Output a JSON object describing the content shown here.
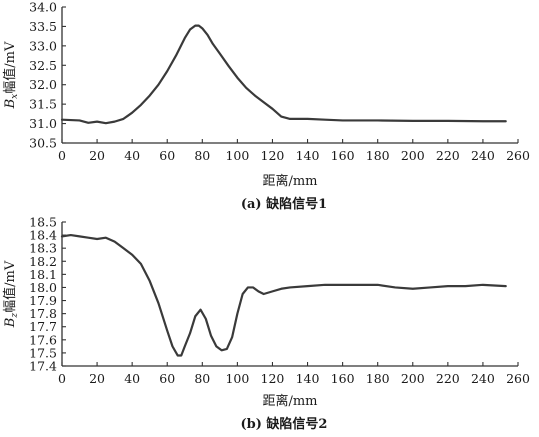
{
  "chart_data": [
    {
      "type": "line",
      "caption": "(a)  缺陷信号1",
      "xlabel": "距离/mm",
      "ylabel_main": "B",
      "ylabel_sub": "x",
      "ylabel_rest": "幅值/mV",
      "xlim": [
        0,
        260
      ],
      "ylim": [
        30.5,
        34.0
      ],
      "xticks": [
        0,
        20,
        40,
        60,
        80,
        100,
        120,
        140,
        160,
        180,
        200,
        220,
        240,
        260
      ],
      "yticks": [
        30.5,
        31.0,
        31.5,
        32.0,
        32.5,
        33.0,
        33.5,
        34.0
      ],
      "series": [
        {
          "x": [
            0,
            10,
            15,
            20,
            25,
            30,
            35,
            40,
            45,
            50,
            55,
            60,
            65,
            70,
            73,
            76,
            78,
            80,
            83,
            86,
            90,
            95,
            100,
            105,
            110,
            115,
            120,
            125,
            130,
            140,
            150,
            160,
            180,
            200,
            220,
            240,
            253
          ],
          "y": [
            31.1,
            31.08,
            31.02,
            31.05,
            31.01,
            31.05,
            31.12,
            31.28,
            31.48,
            31.72,
            32.0,
            32.35,
            32.75,
            33.2,
            33.42,
            33.52,
            33.52,
            33.45,
            33.28,
            33.05,
            32.8,
            32.48,
            32.18,
            31.92,
            31.72,
            31.55,
            31.38,
            31.18,
            31.12,
            31.12,
            31.1,
            31.08,
            31.08,
            31.07,
            31.07,
            31.06,
            31.06
          ]
        }
      ]
    },
    {
      "type": "line",
      "caption": "(b)  缺陷信号2",
      "xlabel": "距离/mm",
      "ylabel_main": "B",
      "ylabel_sub": "z",
      "ylabel_rest": "幅值/mV",
      "xlim": [
        0,
        260
      ],
      "ylim": [
        17.4,
        18.5
      ],
      "xticks": [
        0,
        20,
        40,
        60,
        80,
        100,
        120,
        140,
        160,
        180,
        200,
        220,
        240,
        260
      ],
      "yticks": [
        17.4,
        17.5,
        17.6,
        17.7,
        17.8,
        17.9,
        18.0,
        18.1,
        18.2,
        18.3,
        18.4,
        18.5
      ],
      "series": [
        {
          "x": [
            0,
            5,
            10,
            15,
            20,
            25,
            30,
            35,
            40,
            45,
            50,
            55,
            60,
            63,
            66,
            68,
            70,
            73,
            76,
            79,
            82,
            85,
            88,
            91,
            94,
            97,
            100,
            103,
            106,
            109,
            112,
            115,
            120,
            125,
            130,
            140,
            150,
            160,
            170,
            180,
            190,
            200,
            210,
            220,
            230,
            240,
            253
          ],
          "y": [
            18.39,
            18.4,
            18.39,
            18.38,
            18.37,
            18.38,
            18.35,
            18.3,
            18.25,
            18.18,
            18.05,
            17.88,
            17.67,
            17.55,
            17.48,
            17.48,
            17.55,
            17.65,
            17.78,
            17.83,
            17.76,
            17.63,
            17.55,
            17.52,
            17.53,
            17.62,
            17.8,
            17.95,
            18.0,
            18.0,
            17.97,
            17.95,
            17.97,
            17.99,
            18.0,
            18.01,
            18.02,
            18.02,
            18.02,
            18.02,
            18.0,
            17.99,
            18.0,
            18.01,
            18.01,
            18.02,
            18.01
          ]
        }
      ]
    }
  ]
}
